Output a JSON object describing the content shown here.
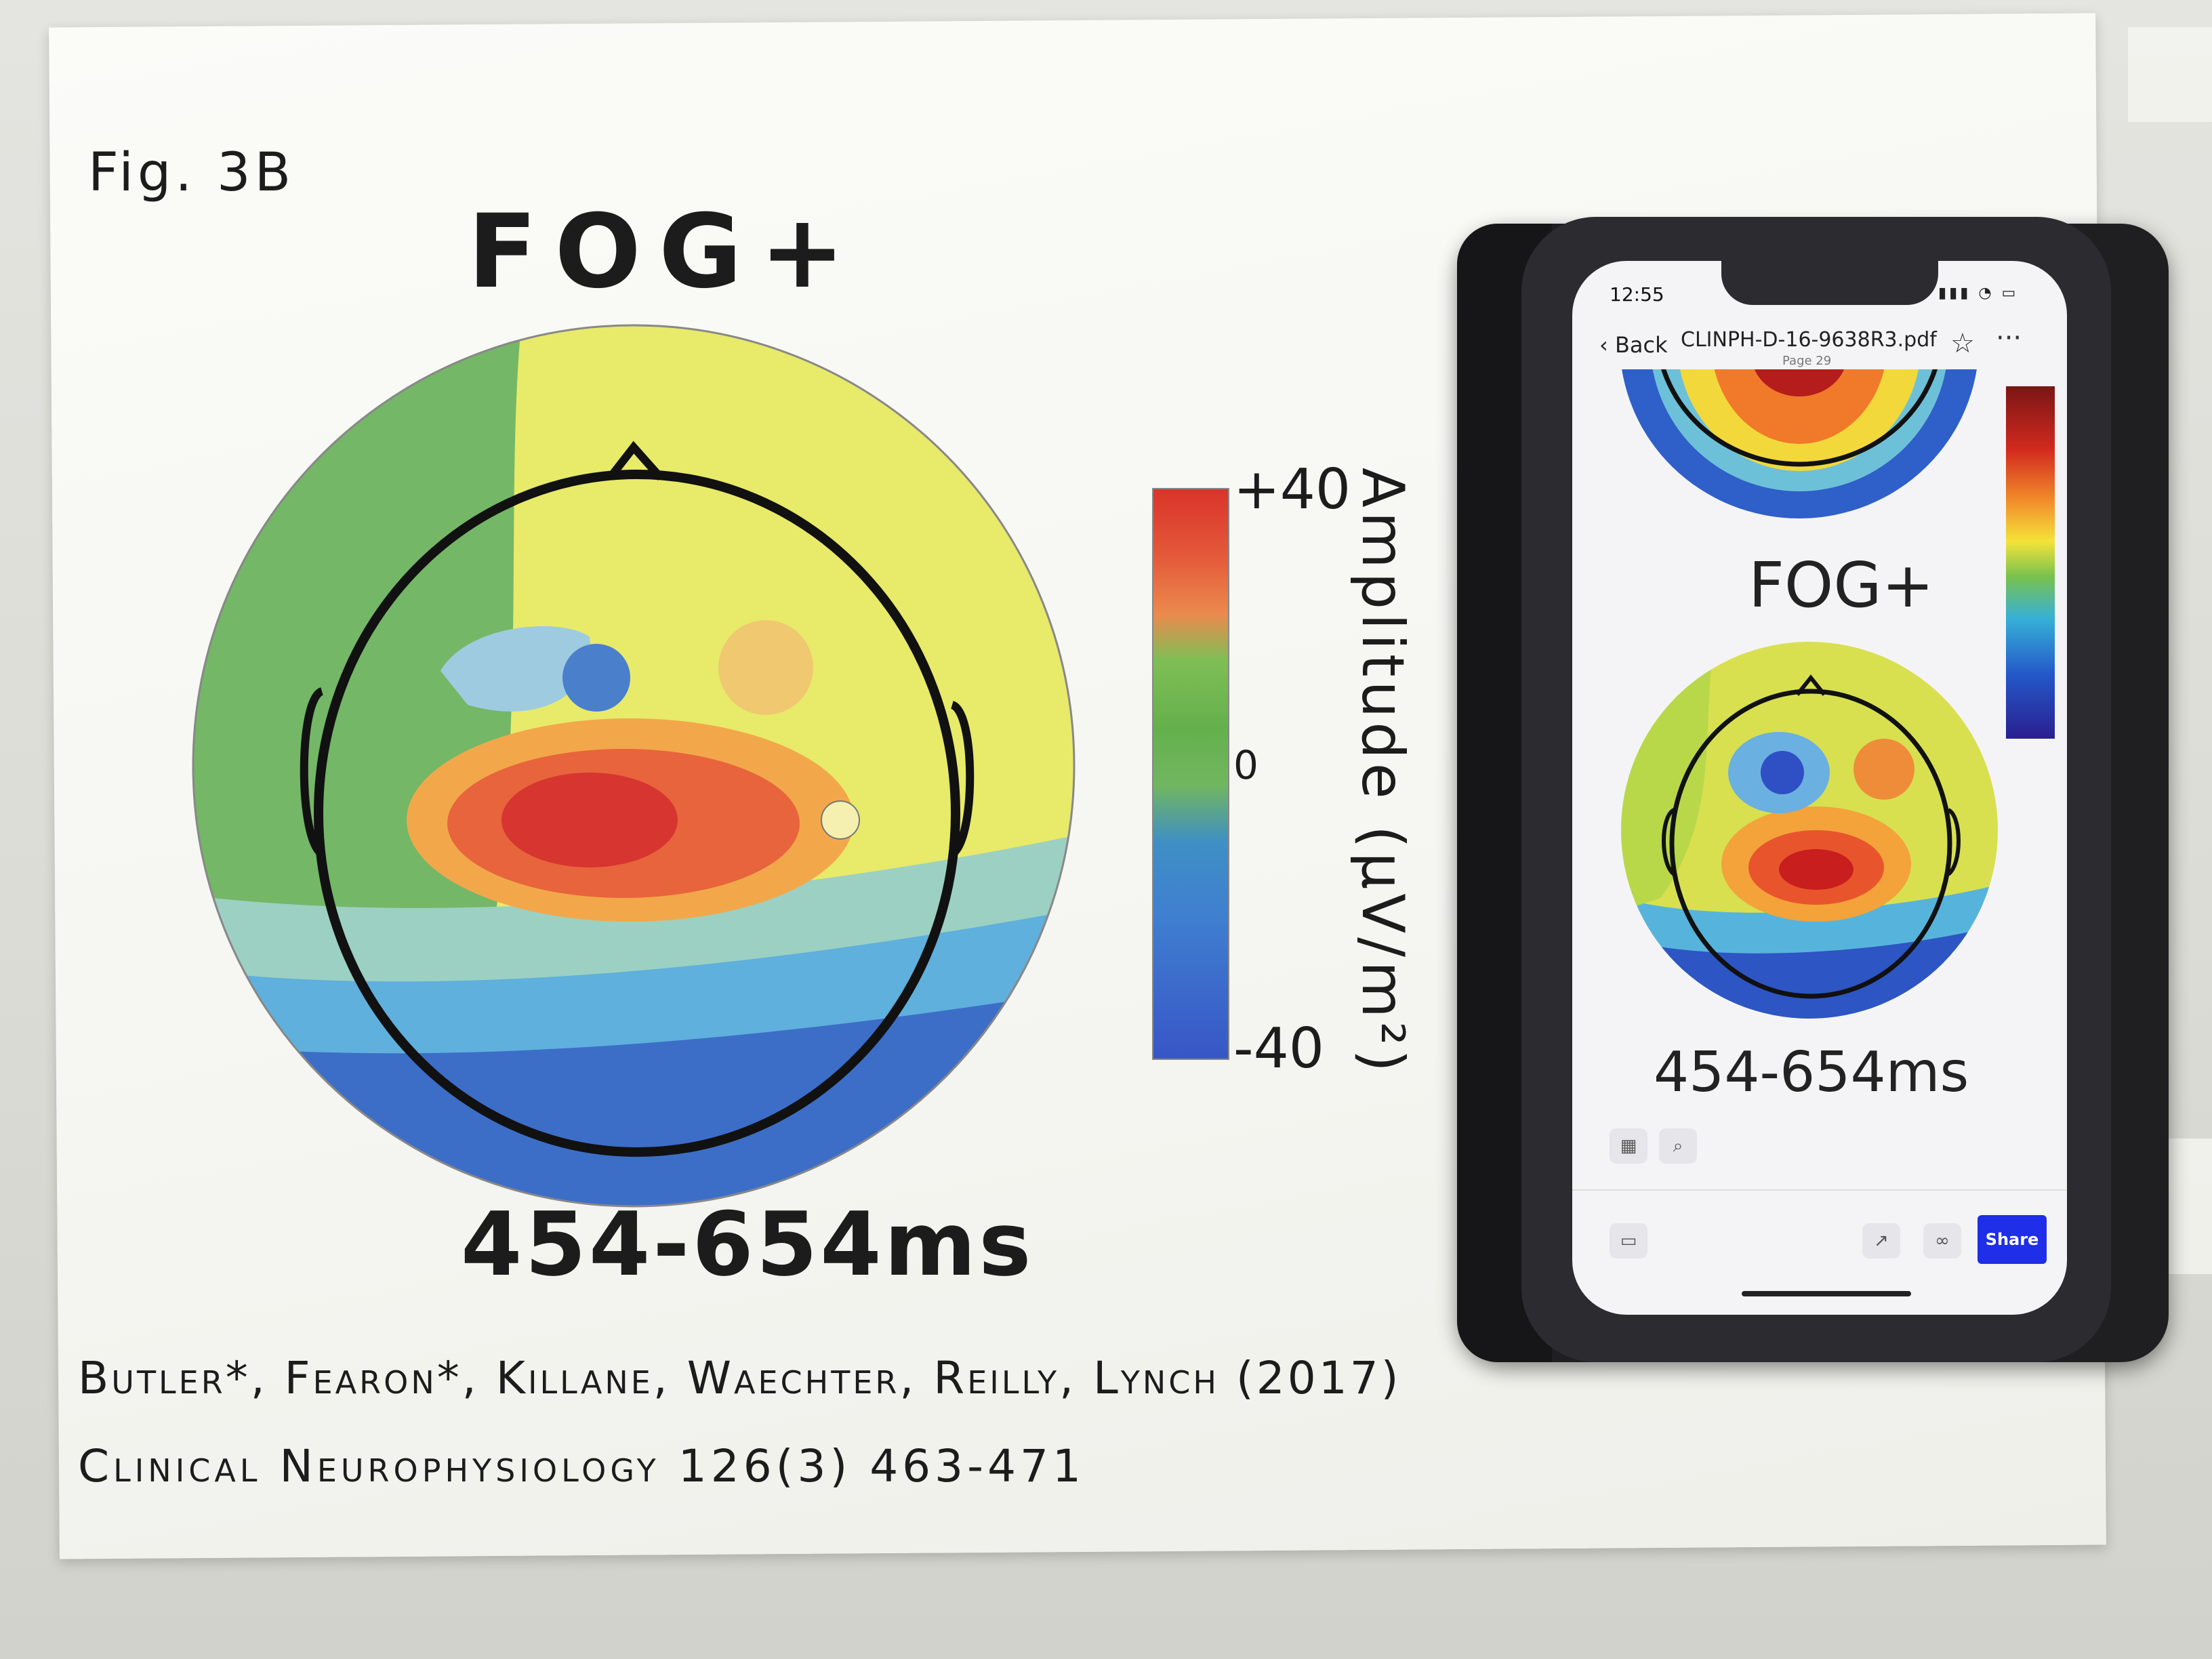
{
  "paper": {
    "fig_label": "Fig. 3B",
    "title": "FOG+",
    "time_window": "454-654ms",
    "citation_line1": "Butler*, Fearon*, Killane, Waechter, Reilly, Lynch (2017)",
    "citation_line2": "Clinical Neurophysiology 126(3) 463-471",
    "colorbar": {
      "top_label": "+40",
      "mid_label": "0",
      "bottom_label": "-40",
      "axis_label": "Amplitude (µV/m²)"
    }
  },
  "phone": {
    "status_time": "12:55",
    "back_label": "Back",
    "file_name": "CLINPH-D-16-9638R3.pdf",
    "page_label": "Page 29",
    "title": "FOG+",
    "time_window": "454-654ms",
    "share_label": "Share"
  },
  "icons": [
    "chevron-left-icon",
    "star-icon",
    "more-icon",
    "grid-icon",
    "search-icon",
    "comment-icon",
    "external-link-icon",
    "link-icon"
  ]
}
